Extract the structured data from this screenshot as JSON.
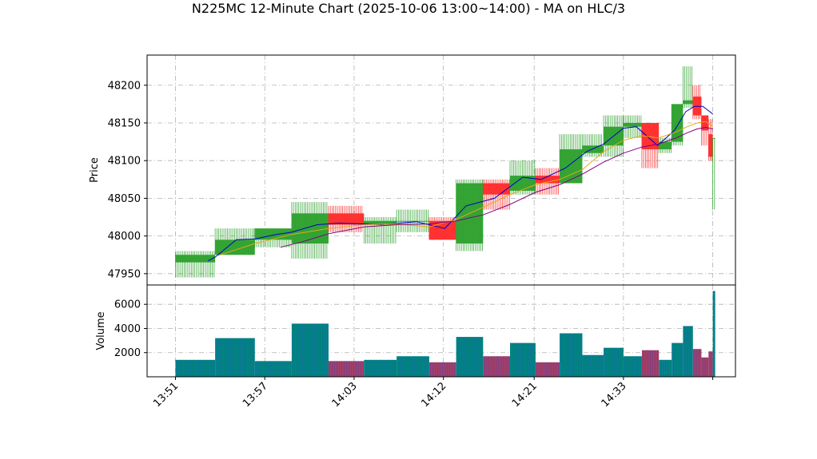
{
  "chart_data": {
    "title": "N225MC 12-Minute Chart (2025-10-06 13:00~14:00) - MA on HLC/3",
    "type": "candlestick",
    "colors": {
      "up": "#2ca02c",
      "down": "#ff2a2a",
      "ma_fast": "#0000cc",
      "ma_mid": "#e6a817",
      "ma_slow": "#800080",
      "volume_up": "#008080",
      "volume_down": "#a0406a",
      "grid": "#b0b0b0"
    },
    "x_ticks": [
      "13:51",
      "13:57",
      "14:03",
      "14:12",
      "14:21",
      "14:33"
    ],
    "price_panel": {
      "ylabel": "Price",
      "yticks": [
        47950,
        48000,
        48050,
        48100,
        48150,
        48200
      ],
      "ylim": [
        47935,
        48240
      ],
      "grid": true
    },
    "volume_panel": {
      "ylabel": "Volume",
      "yticks": [
        2000,
        4000,
        6000
      ],
      "ylim": [
        0,
        7600
      ],
      "grid": true
    },
    "candles": [
      {
        "t": 0.0,
        "open": 47965,
        "high": 47980,
        "low": 47945,
        "close": 47975,
        "volume": 1400
      },
      {
        "t": 2.8,
        "open": 47975,
        "high": 48010,
        "low": 47975,
        "close": 47995,
        "volume": 3200
      },
      {
        "t": 5.6,
        "open": 47995,
        "high": 48010,
        "low": 47985,
        "close": 48010,
        "volume": 1300
      },
      {
        "t": 8.2,
        "open": 47990,
        "high": 48045,
        "low": 47970,
        "close": 48030,
        "volume": 4400
      },
      {
        "t": 10.8,
        "open": 48030,
        "high": 48040,
        "low": 48005,
        "close": 48015,
        "volume": 1300
      },
      {
        "t": 13.3,
        "open": 48015,
        "high": 48025,
        "low": 47990,
        "close": 48020,
        "volume": 1400
      },
      {
        "t": 15.6,
        "open": 48020,
        "high": 48035,
        "low": 48005,
        "close": 48020,
        "volume": 1700
      },
      {
        "t": 17.9,
        "open": 48020,
        "high": 48025,
        "low": 47995,
        "close": 47995,
        "volume": 1200
      },
      {
        "t": 19.8,
        "open": 47990,
        "high": 48075,
        "low": 47980,
        "close": 48070,
        "volume": 3300
      },
      {
        "t": 21.7,
        "open": 48070,
        "high": 48075,
        "low": 48035,
        "close": 48055,
        "volume": 1700
      },
      {
        "t": 23.6,
        "open": 48060,
        "high": 48100,
        "low": 48055,
        "close": 48080,
        "volume": 2800
      },
      {
        "t": 25.4,
        "open": 48080,
        "high": 48090,
        "low": 48055,
        "close": 48070,
        "volume": 1200
      },
      {
        "t": 27.1,
        "open": 48070,
        "high": 48135,
        "low": 48070,
        "close": 48115,
        "volume": 3600
      },
      {
        "t": 28.7,
        "open": 48110,
        "high": 48135,
        "low": 48105,
        "close": 48120,
        "volume": 1800
      },
      {
        "t": 30.2,
        "open": 48120,
        "high": 48160,
        "low": 48105,
        "close": 48145,
        "volume": 2400
      },
      {
        "t": 31.6,
        "open": 48145,
        "high": 48160,
        "low": 48130,
        "close": 48150,
        "volume": 1700
      },
      {
        "t": 32.9,
        "open": 48150,
        "high": 48150,
        "low": 48090,
        "close": 48115,
        "volume": 2200
      },
      {
        "t": 34.1,
        "open": 48115,
        "high": 48130,
        "low": 48110,
        "close": 48125,
        "volume": 1400
      },
      {
        "t": 35.0,
        "open": 48125,
        "high": 48175,
        "low": 48120,
        "close": 48175,
        "volume": 2800
      },
      {
        "t": 35.8,
        "open": 48175,
        "high": 48225,
        "low": 48170,
        "close": 48180,
        "volume": 4200
      },
      {
        "t": 36.5,
        "open": 48185,
        "high": 48200,
        "low": 48155,
        "close": 48160,
        "volume": 2300
      },
      {
        "t": 37.1,
        "open": 48160,
        "high": 48160,
        "low": 48120,
        "close": 48140,
        "volume": 1600
      },
      {
        "t": 37.6,
        "open": 48135,
        "high": 48155,
        "low": 48100,
        "close": 48105,
        "volume": 2100
      },
      {
        "t": 37.9,
        "open": 48130,
        "high": 48130,
        "low": 48035,
        "close": 48130,
        "volume": 7100
      }
    ],
    "tick_positions": [
      0.0,
      6.3,
      12.6,
      18.9,
      25.3,
      31.6
    ],
    "x_range": [
      -2.0,
      39.5
    ],
    "moving_averages": [
      {
        "color": "#0000cc",
        "points": [
          [
            2.3,
            47967
          ],
          [
            2.8,
            47972
          ],
          [
            4.3,
            47995
          ],
          [
            5.6,
            47996
          ],
          [
            7.1,
            48002
          ],
          [
            8.2,
            48005
          ],
          [
            10.0,
            48015
          ],
          [
            11.5,
            48017
          ],
          [
            13.3,
            48016
          ],
          [
            14.5,
            48015
          ],
          [
            17.0,
            48019
          ],
          [
            19.0,
            48010
          ],
          [
            20.5,
            48040
          ],
          [
            22.5,
            48050
          ],
          [
            24.5,
            48078
          ],
          [
            25.8,
            48075
          ],
          [
            27.5,
            48090
          ],
          [
            29.0,
            48112
          ],
          [
            30.2,
            48122
          ],
          [
            31.6,
            48143
          ],
          [
            32.5,
            48145
          ],
          [
            34.0,
            48120
          ],
          [
            35.2,
            48140
          ],
          [
            36.0,
            48165
          ],
          [
            36.6,
            48172
          ],
          [
            37.2,
            48172
          ],
          [
            37.9,
            48162
          ]
        ]
      },
      {
        "color": "#e6a817",
        "points": [
          [
            3.0,
            47974
          ],
          [
            5.6,
            47990
          ],
          [
            8.2,
            48002
          ],
          [
            10.8,
            48010
          ],
          [
            13.3,
            48015
          ],
          [
            15.6,
            48016
          ],
          [
            17.9,
            48012
          ],
          [
            19.8,
            48022
          ],
          [
            21.7,
            48038
          ],
          [
            23.6,
            48055
          ],
          [
            25.4,
            48068
          ],
          [
            27.1,
            48075
          ],
          [
            28.7,
            48088
          ],
          [
            30.2,
            48112
          ],
          [
            31.6,
            48127
          ],
          [
            32.9,
            48133
          ],
          [
            34.1,
            48130
          ],
          [
            35.3,
            48138
          ],
          [
            36.1,
            48145
          ],
          [
            36.8,
            48150
          ],
          [
            37.4,
            48152
          ],
          [
            37.9,
            48145
          ]
        ]
      },
      {
        "color": "#800080",
        "points": [
          [
            7.4,
            47985
          ],
          [
            8.9,
            47992
          ],
          [
            10.8,
            48003
          ],
          [
            13.3,
            48012
          ],
          [
            15.6,
            48015
          ],
          [
            17.9,
            48016
          ],
          [
            19.8,
            48020
          ],
          [
            21.7,
            48028
          ],
          [
            23.6,
            48042
          ],
          [
            25.4,
            48058
          ],
          [
            27.1,
            48068
          ],
          [
            28.7,
            48082
          ],
          [
            30.2,
            48098
          ],
          [
            31.6,
            48110
          ],
          [
            32.9,
            48118
          ],
          [
            34.1,
            48122
          ],
          [
            35.3,
            48130
          ],
          [
            36.1,
            48137
          ],
          [
            36.8,
            48142
          ],
          [
            37.4,
            48144
          ],
          [
            37.9,
            48142
          ]
        ]
      }
    ]
  }
}
